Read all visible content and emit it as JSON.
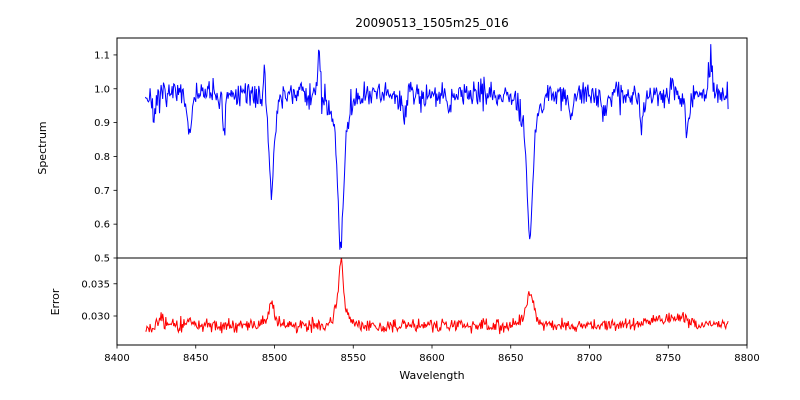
{
  "chart_data": [
    {
      "type": "line",
      "name": "spectrum",
      "title": "20090513_1505m25_016",
      "xlabel": "Wavelength",
      "ylabel": "Spectrum",
      "xlim": [
        8400,
        8800
      ],
      "ylim": [
        0.5,
        1.15
      ],
      "xticks": [
        8400,
        8450,
        8500,
        8550,
        8600,
        8650,
        8700,
        8750,
        8800
      ],
      "xtick_labels": [
        "8400",
        "8450",
        "8500",
        "8550",
        "8600",
        "8650",
        "8700",
        "8750",
        "8800"
      ],
      "yticks": [
        0.5,
        0.6,
        0.7,
        0.8,
        0.9,
        1.0,
        1.1
      ],
      "ytick_labels": [
        "0.5",
        "0.6",
        "0.7",
        "0.8",
        "0.9",
        "1.0",
        "1.1"
      ],
      "line_color": "#0000ff",
      "x_start": 8418,
      "x_end": 8788,
      "x_step": 0.5,
      "baseline": 0.985,
      "noise_sigma": 0.019,
      "spike_probability": 0.02,
      "spike_amplitude": 0.06,
      "seed": 7,
      "absorption_lines": [
        {
          "center": 8498.0,
          "depth": 0.285,
          "width": 1.4
        },
        {
          "center": 8542.1,
          "depth": 0.45,
          "width": 1.7
        },
        {
          "center": 8662.1,
          "depth": 0.425,
          "width": 1.6
        }
      ],
      "minor_lines": [
        {
          "center": 8424,
          "depth": 0.075,
          "width": 0.9
        },
        {
          "center": 8446,
          "depth": 0.125,
          "width": 0.9
        },
        {
          "center": 8468,
          "depth": 0.1,
          "width": 0.9
        },
        {
          "center": 8583,
          "depth": 0.06,
          "width": 0.9
        },
        {
          "center": 8611,
          "depth": 0.05,
          "width": 0.8
        },
        {
          "center": 8688,
          "depth": 0.08,
          "width": 0.9
        },
        {
          "center": 8710,
          "depth": 0.07,
          "width": 0.8
        },
        {
          "center": 8733,
          "depth": 0.1,
          "width": 0.9
        },
        {
          "center": 8762,
          "depth": 0.12,
          "width": 1.0
        }
      ],
      "emission_spikes": [
        {
          "center": 8493.5,
          "height": 0.1,
          "width": 0.6
        },
        {
          "center": 8528.5,
          "height": 0.115,
          "width": 0.6
        },
        {
          "center": 8777.0,
          "height": 0.105,
          "width": 0.7
        }
      ]
    },
    {
      "type": "line",
      "name": "error",
      "ylabel": "Error",
      "ylim": [
        0.0255,
        0.039
      ],
      "yticks": [
        0.03,
        0.035
      ],
      "ytick_labels": [
        "0.030",
        "0.035"
      ],
      "line_color": "#ff0000",
      "x_start": 8418,
      "x_end": 8788,
      "x_step": 0.5,
      "baseline": 0.0285,
      "noise_sigma": 0.0005,
      "spike_probability": 0.01,
      "spike_amplitude": 0.0012,
      "seed": 13,
      "peaks": [
        {
          "center": 8428.0,
          "height": 0.0016,
          "width": 0.8
        },
        {
          "center": 8446.0,
          "height": 0.0012,
          "width": 0.9
        },
        {
          "center": 8498.0,
          "height": 0.0036,
          "width": 1.5
        },
        {
          "center": 8542.1,
          "height": 0.01,
          "width": 1.5
        },
        {
          "center": 8662.1,
          "height": 0.0052,
          "width": 1.9
        },
        {
          "center": 8750.0,
          "height": 0.0012,
          "width": 9.0
        }
      ]
    }
  ]
}
